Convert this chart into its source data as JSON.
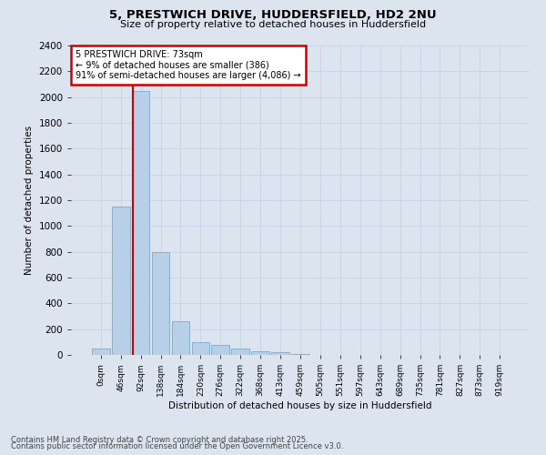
{
  "title_line1": "5, PRESTWICH DRIVE, HUDDERSFIELD, HD2 2NU",
  "title_line2": "Size of property relative to detached houses in Huddersfield",
  "xlabel": "Distribution of detached houses by size in Huddersfield",
  "ylabel": "Number of detached properties",
  "bar_labels": [
    "0sqm",
    "46sqm",
    "92sqm",
    "138sqm",
    "184sqm",
    "230sqm",
    "276sqm",
    "322sqm",
    "368sqm",
    "413sqm",
    "459sqm",
    "505sqm",
    "551sqm",
    "597sqm",
    "643sqm",
    "689sqm",
    "735sqm",
    "781sqm",
    "827sqm",
    "873sqm",
    "919sqm"
  ],
  "bar_values": [
    50,
    1150,
    2050,
    800,
    260,
    100,
    75,
    50,
    25,
    20,
    10,
    0,
    0,
    0,
    0,
    0,
    0,
    0,
    0,
    0,
    0
  ],
  "bar_color": "#b8cfe8",
  "bar_edge_color": "#7aaad0",
  "property_line_x": 1.59,
  "annotation_line1": "5 PRESTWICH DRIVE: 73sqm",
  "annotation_line2": "← 9% of detached houses are smaller (386)",
  "annotation_line3": "91% of semi-detached houses are larger (4,086) →",
  "annotation_box_facecolor": "#ffffff",
  "annotation_box_edgecolor": "#cc0000",
  "property_vline_color": "#cc0000",
  "ylim": [
    0,
    2400
  ],
  "yticks": [
    0,
    200,
    400,
    600,
    800,
    1000,
    1200,
    1400,
    1600,
    1800,
    2000,
    2200,
    2400
  ],
  "grid_color": "#c8d4e8",
  "background_color": "#dce4f0",
  "footnote_line1": "Contains HM Land Registry data © Crown copyright and database right 2025.",
  "footnote_line2": "Contains public sector information licensed under the Open Government Licence v3.0."
}
